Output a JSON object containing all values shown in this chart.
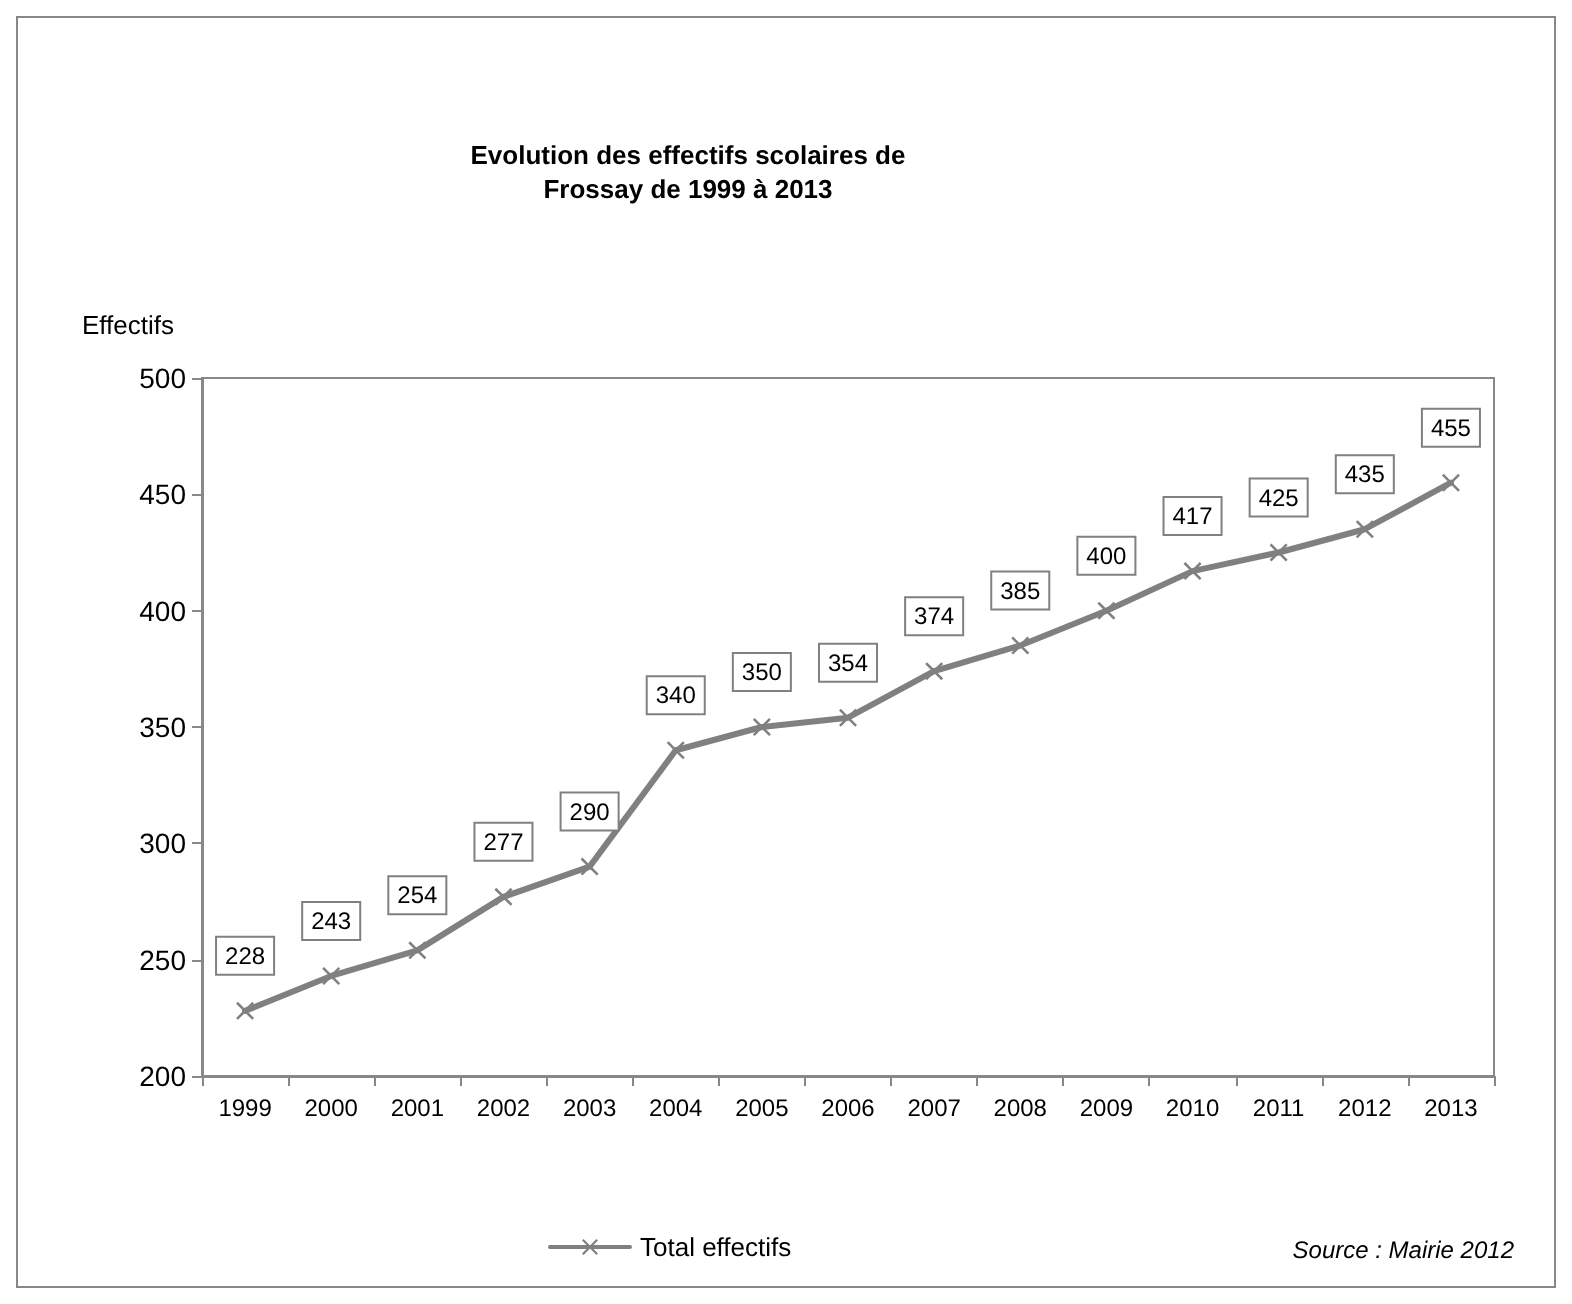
{
  "chart_data": {
    "type": "line",
    "title": "Evolution des effectifs scolaires de\nFrossay de 1999 à 2013",
    "ylabel": "Effectifs",
    "categories": [
      "1999",
      "2000",
      "2001",
      "2002",
      "2003",
      "2004",
      "2005",
      "2006",
      "2007",
      "2008",
      "2009",
      "2010",
      "2011",
      "2012",
      "2013"
    ],
    "series": [
      {
        "name": "Total effectifs",
        "color": "#808080",
        "values": [
          228,
          243,
          254,
          277,
          290,
          340,
          350,
          354,
          374,
          385,
          400,
          417,
          425,
          435,
          455
        ]
      }
    ],
    "ylim": [
      200,
      500
    ],
    "yticks": [
      200,
      250,
      300,
      350,
      400,
      450,
      500
    ],
    "grid": false,
    "legend": "bottom",
    "marker": "cross",
    "line_style": "solid",
    "data_labels": true,
    "annotations": [
      "Source : Mairie 2012"
    ]
  }
}
